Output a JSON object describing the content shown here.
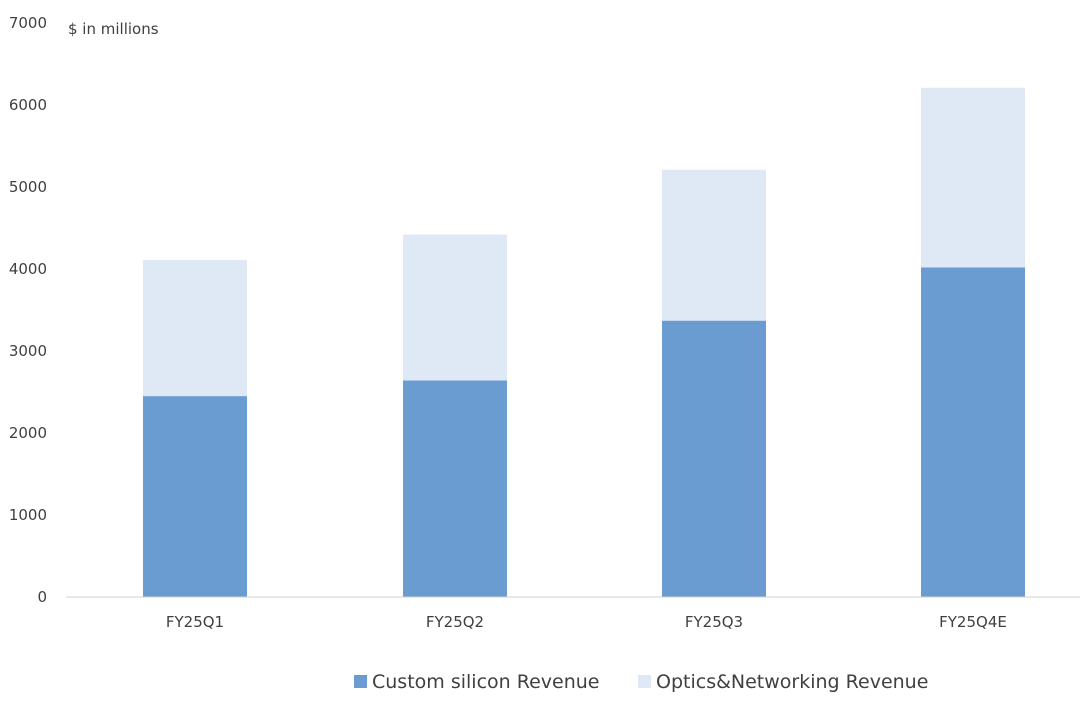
{
  "chart_data": {
    "type": "bar",
    "stacked": true,
    "unit_label": "$ in millions",
    "categories": [
      "FY25Q1",
      "FY25Q2",
      "FY25Q3",
      "FY25Q4E"
    ],
    "series": [
      {
        "name": "Custom silicon Revenue",
        "color": "#6a9bd1",
        "values": [
          2450,
          2640,
          3370,
          4020
        ]
      },
      {
        "name": "Optics&Networking Revenue",
        "color": "#dfe9f5",
        "values": [
          1660,
          1780,
          1840,
          2190
        ]
      }
    ],
    "ylim": [
      0,
      7000
    ],
    "yticks": [
      0,
      1000,
      2000,
      3000,
      4000,
      5000,
      6000,
      7000
    ],
    "grid": false,
    "legend_position": "bottom"
  }
}
